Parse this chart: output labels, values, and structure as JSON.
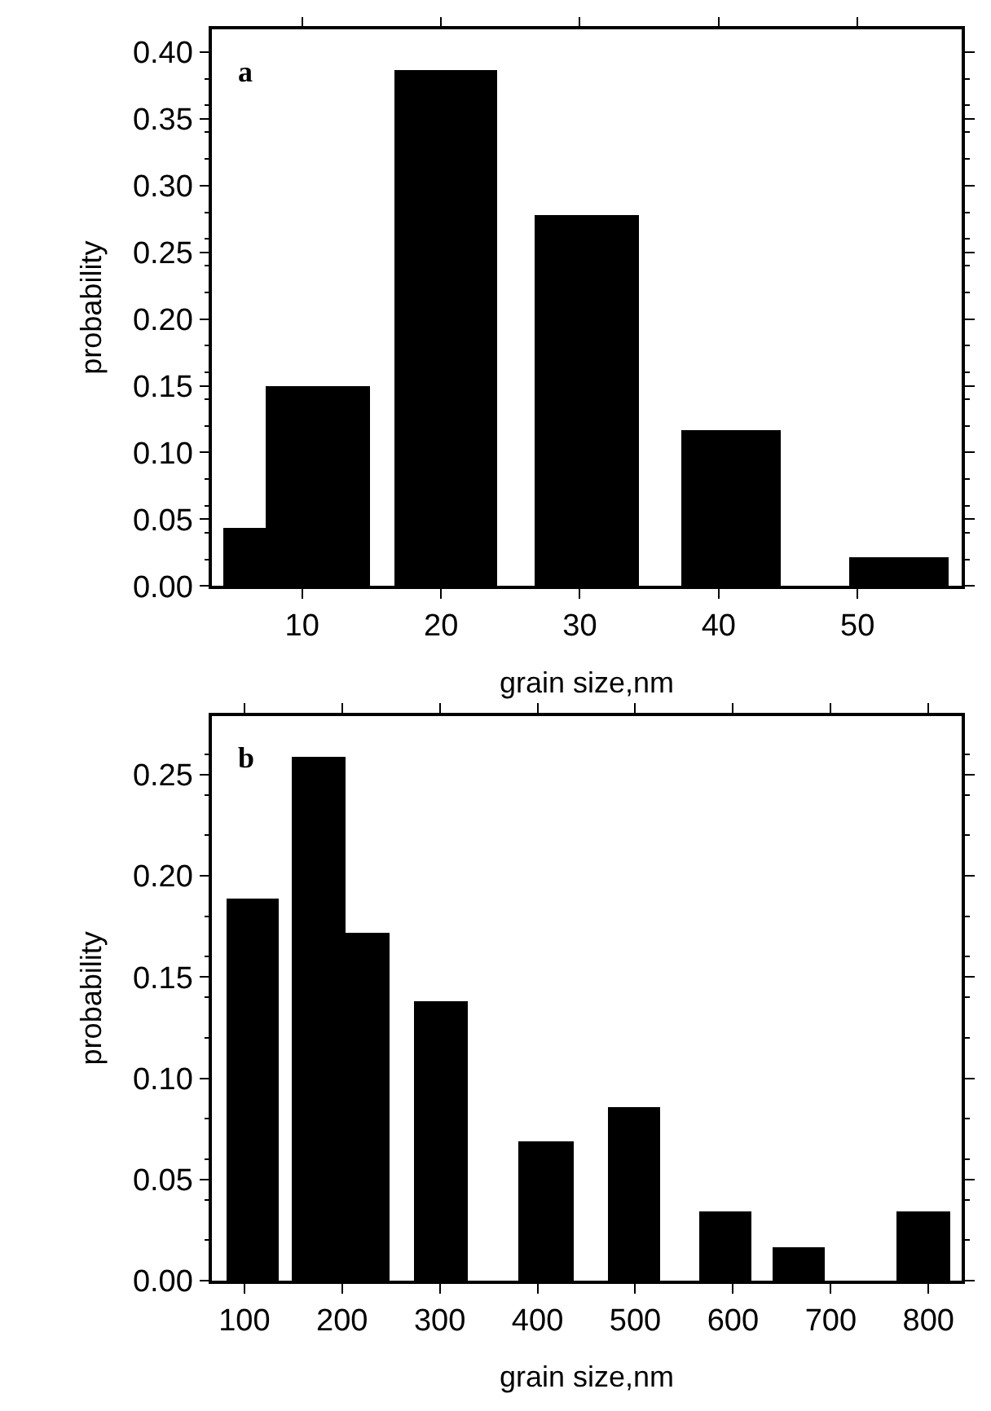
{
  "chart_data": [
    {
      "type": "histogram",
      "xlabel": "grain size,nm",
      "ylabel": "probability",
      "annotations": [
        "a"
      ],
      "bins": [
        4.3,
        7.4,
        14.9,
        16.7,
        24.0,
        26.8,
        34.2,
        37.3,
        44.5,
        49.4,
        56.6
      ],
      "values": [
        0.043,
        0.15,
        0,
        0.387,
        0,
        0.278,
        0,
        0.117,
        0,
        0.021
      ],
      "color": "#000000",
      "xlim": [
        3.5,
        57.5
      ],
      "xticks": [
        10,
        20,
        30,
        40,
        50
      ],
      "ylim": [
        0,
        0.417
      ],
      "yticks": [
        {
          "value": 0,
          "label": "0.00"
        },
        {
          "value": 0.05,
          "label": "0.05"
        },
        {
          "value": 0.1,
          "label": "0.10"
        },
        {
          "value": 0.15,
          "label": "0.15"
        },
        {
          "value": 0.2,
          "label": "0.20"
        },
        {
          "value": 0.25,
          "label": "0.25"
        },
        {
          "value": 0.3,
          "label": "0.30"
        },
        {
          "value": 0.35,
          "label": "0.35"
        },
        {
          "value": 0.4,
          "label": "0.40"
        }
      ]
    },
    {
      "type": "histogram",
      "xlabel": "grain size,nm",
      "ylabel": "probability",
      "annotations": [
        "b"
      ],
      "bins": [
        81,
        136,
        149,
        203,
        249,
        274,
        329,
        381,
        437,
        472,
        526,
        565,
        619,
        640,
        694,
        767,
        822
      ],
      "values": [
        0.189,
        0,
        0.259,
        0.172,
        0,
        0.138,
        0,
        0.069,
        0,
        0.086,
        0,
        0.034,
        0,
        0.017,
        0,
        0.034
      ],
      "color": "#000000",
      "xlim": [
        66.8,
        834
      ],
      "xticks": [
        100,
        200,
        300,
        400,
        500,
        600,
        700,
        800
      ],
      "ylim": [
        0,
        0.279
      ],
      "yticks": [
        {
          "value": 0,
          "label": "0.00"
        },
        {
          "value": 0.05,
          "label": "0.05"
        },
        {
          "value": 0.1,
          "label": "0.10"
        },
        {
          "value": 0.15,
          "label": "0.15"
        },
        {
          "value": 0.2,
          "label": "0.20"
        },
        {
          "value": 0.25,
          "label": "0.25"
        }
      ]
    }
  ]
}
